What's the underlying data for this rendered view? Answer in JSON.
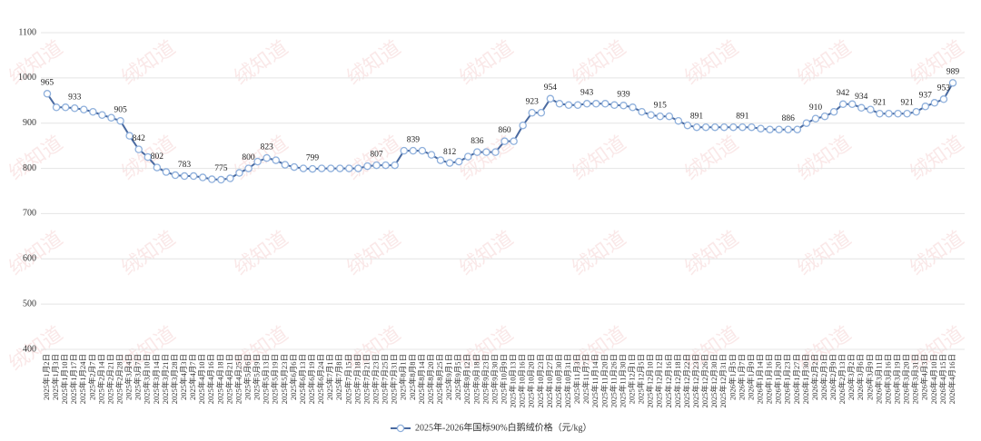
{
  "chart_data": {
    "type": "line",
    "watermark": "绒知道",
    "categories": [
      "2025年1月2日",
      "2025年1月3日",
      "2025年1月10日",
      "2025年1月17日",
      "2025年1月24日",
      "2025年2月7日",
      "2025年2月14日",
      "2025年2月21日",
      "2025年2月28日",
      "2025年3月4日",
      "2025年3月7日",
      "2025年3月10日",
      "2025年3月14日",
      "2025年3月21日",
      "2025年3月28日",
      "2025年4月3日",
      "2025年4月7日",
      "2025年4月10日",
      "2025年4月16日",
      "2025年4月18日",
      "2025年4月21日",
      "2025年4月25日",
      "2025年5月6日",
      "2025年5月9日",
      "2025年5月13日",
      "2025年5月19日",
      "2025年5月23日",
      "2025年6月6日",
      "2025年6月13日",
      "2025年6月19日",
      "2025年6月24日",
      "2025年7月1日",
      "2025年7月8日",
      "2025年7月15日",
      "2025年7月18日",
      "2025年7月21日",
      "2025年7月23日",
      "2025年7月25日",
      "2025年7月31日",
      "2025年8月1日",
      "2025年8月8日",
      "2025年8月14日",
      "2025年8月20日",
      "2025年8月25日",
      "2025年9月1日",
      "2025年9月5日",
      "2025年9月12日",
      "2025年9月18日",
      "2025年9月23日",
      "2025年9月30日",
      "2025年10月9日",
      "2025年10月13日",
      "2025年10月16日",
      "2025年10月20日",
      "2025年10月23日",
      "2025年10月27日",
      "2025年10月30日",
      "2025年10月31日",
      "2025年11月3日",
      "2025年11月7日",
      "2025年11月14日",
      "2025年11月20日",
      "2025年11月26日",
      "2025年11月30日",
      "2025年12月1日",
      "2025年12月5日",
      "2025年12月10日",
      "2025年12月12日",
      "2025年12月16日",
      "2025年12月18日",
      "2025年12月22日",
      "2025年12月23日",
      "2025年12月26日",
      "2025年12月30日",
      "2025年12月31日",
      "2026年1月5日",
      "2026年1月7日",
      "2026年1月9日",
      "2026年1月14日",
      "2026年1月16日",
      "2026年1月20日",
      "2026年1月23日",
      "2026年1月27日",
      "2026年1月30日",
      "2026年2月2日",
      "2026年2月3日",
      "2026年2月9日",
      "2026年2月13日",
      "2026年3月2日",
      "2026年3月6日",
      "2026年3月9日",
      "2026年3月11日",
      "2026年3月16日",
      "2026年3月19日",
      "2026年3月20日",
      "2026年3月31日",
      "2026年4月3日",
      "2026年4月10日",
      "2026年4月15日",
      "2026年4月16日"
    ],
    "series": [
      {
        "name": "2025年-2026年国标90%白鹅绒价格（元/kg）",
        "color": "#4a6aa0",
        "marker_edge": "#8fb0dc",
        "values": [
          965,
          935,
          935,
          933,
          930,
          925,
          918,
          912,
          905,
          872,
          842,
          825,
          802,
          792,
          785,
          783,
          783,
          780,
          776,
          775,
          778,
          790,
          800,
          815,
          823,
          818,
          808,
          803,
          800,
          799,
          800,
          800,
          800,
          800,
          800,
          805,
          807,
          807,
          807,
          839,
          839,
          839,
          830,
          818,
          812,
          815,
          826,
          836,
          836,
          836,
          860,
          860,
          895,
          923,
          923,
          954,
          943,
          940,
          940,
          943,
          943,
          943,
          940,
          939,
          935,
          925,
          918,
          915,
          915,
          905,
          895,
          891,
          891,
          891,
          891,
          891,
          891,
          891,
          888,
          886,
          886,
          886,
          886,
          900,
          910,
          915,
          925,
          942,
          942,
          934,
          930,
          921,
          921,
          921,
          921,
          925,
          937,
          945,
          953,
          989
        ],
        "labeled": [
          0,
          3,
          8,
          10,
          12,
          15,
          19,
          22,
          24,
          29,
          36,
          40,
          44,
          47,
          50,
          53,
          55,
          59,
          63,
          67,
          71,
          76,
          81,
          84,
          87,
          89,
          91,
          94,
          96,
          98,
          99
        ]
      }
    ],
    "ylim": [
      400,
      1100
    ],
    "yticks": [
      400,
      500,
      600,
      700,
      800,
      900,
      1000,
      1100
    ],
    "grid": true,
    "legend": "bottom"
  }
}
